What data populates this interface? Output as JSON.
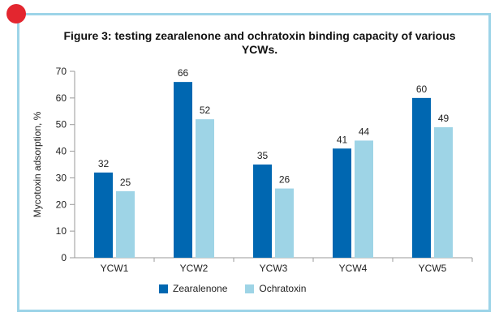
{
  "colors": {
    "zearalenone": "#0067b1",
    "ochratoxin": "#9ed4e6",
    "frame": "#9dd4e8",
    "dot": "#e3262f"
  },
  "chart_data": {
    "type": "bar",
    "title": "Figure 3: testing zearalenone and ochratoxin binding capacity of various YCWs.",
    "xlabel": "",
    "ylabel": "Mycotoxin adsorption, %",
    "ylim": [
      0,
      70
    ],
    "yticks": [
      0,
      10,
      20,
      30,
      40,
      50,
      60,
      70
    ],
    "grid": false,
    "legend_position": "bottom",
    "categories": [
      "YCW1",
      "YCW2",
      "YCW3",
      "YCW4",
      "YCW5"
    ],
    "series": [
      {
        "name": "Zearalenone",
        "values": [
          32,
          66,
          35,
          41,
          60
        ]
      },
      {
        "name": "Ochratoxin",
        "values": [
          25,
          52,
          26,
          44,
          49
        ]
      }
    ]
  }
}
